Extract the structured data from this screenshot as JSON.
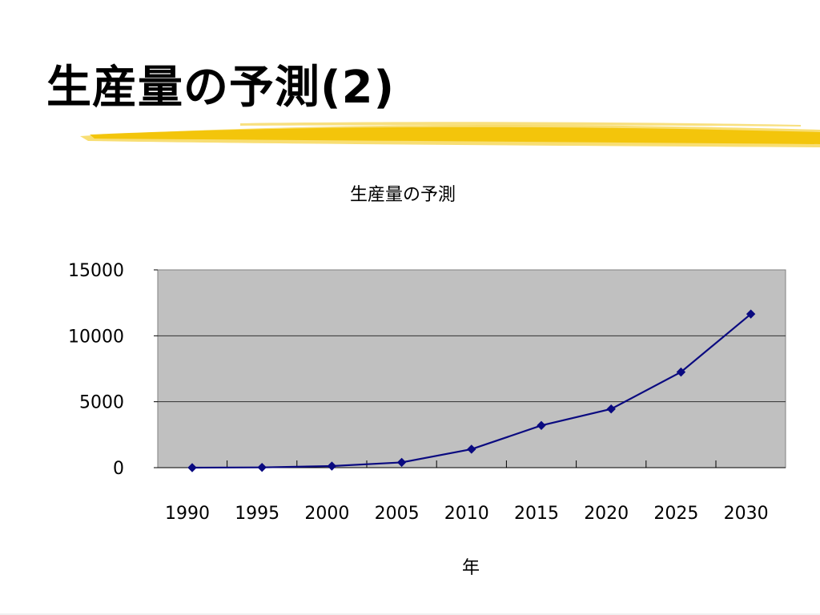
{
  "slide": {
    "title": "生産量の予測(2)",
    "accent_color": "#f2c200"
  },
  "chart_data": {
    "type": "line",
    "title": "生産量の予測",
    "xlabel": "年",
    "ylabel": "",
    "x": [
      1990,
      1995,
      2000,
      2005,
      2010,
      2015,
      2020,
      2025,
      2030
    ],
    "series": [
      {
        "values": [
          0,
          20,
          120,
          400,
          1400,
          3200,
          4450,
          7250,
          11650
        ],
        "color": "#0a0a80",
        "marker": "diamond"
      }
    ],
    "ylim": [
      0,
      15000
    ],
    "yticks": [
      0,
      5000,
      10000,
      15000
    ],
    "grid": true,
    "legend": "none",
    "plot_background": "#c0c0c0"
  }
}
